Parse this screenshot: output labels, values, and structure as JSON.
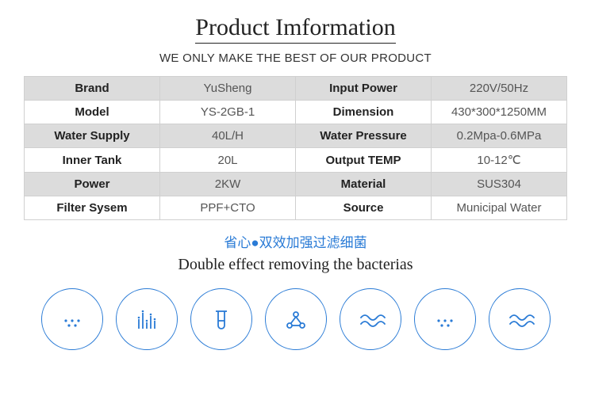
{
  "header": {
    "title": "Product Imformation",
    "subtitle": "WE ONLY MAKE THE BEST OF OUR PRODUCT"
  },
  "specs": {
    "rows": [
      {
        "shade": true,
        "k1": "Brand",
        "v1": "YuSheng",
        "k2": "Input Power",
        "v2": "220V/50Hz"
      },
      {
        "shade": false,
        "k1": "Model",
        "v1": "YS-2GB-1",
        "k2": "Dimension",
        "v2": "430*300*1250MM"
      },
      {
        "shade": true,
        "k1": "Water Supply",
        "v1": "40L/H",
        "k2": "Water Pressure",
        "v2": "0.2Mpa-0.6MPa"
      },
      {
        "shade": false,
        "k1": "Inner Tank",
        "v1": "20L",
        "k2": "Output TEMP",
        "v2": "10-12℃"
      },
      {
        "shade": true,
        "k1": "Power",
        "v1": "2KW",
        "k2": "Material",
        "v2": "SUS304"
      },
      {
        "shade": false,
        "k1": "Filter Sysem",
        "v1": "PPF+CTO",
        "k2": "Source",
        "v2": "Municipal Water"
      }
    ]
  },
  "tagline": {
    "cn": "省心●双效加强过滤细菌",
    "en": "Double effect removing the bacterias"
  },
  "styling": {
    "accent_color": "#2a7bd6",
    "shaded_row_bg": "#dcdcdc",
    "plain_row_bg": "#ffffff",
    "border_color": "#d0d0d0",
    "title_font": "Times New Roman",
    "body_font": "Arial",
    "icon_stroke_width": 1.8,
    "icon_circle_diameter": 78
  },
  "icons": [
    {
      "name": "dots-icon"
    },
    {
      "name": "bars-icon"
    },
    {
      "name": "testtube-icon"
    },
    {
      "name": "molecule-icon"
    },
    {
      "name": "wave-icon"
    },
    {
      "name": "dots-icon"
    },
    {
      "name": "wave-icon"
    }
  ]
}
